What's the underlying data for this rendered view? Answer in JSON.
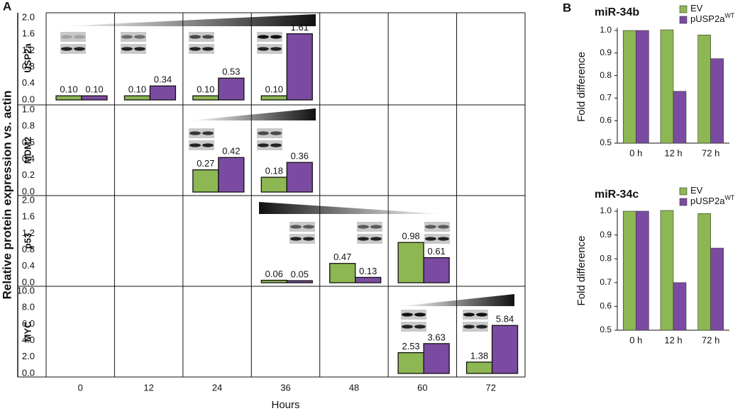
{
  "chart_data": [
    {
      "type": "bar",
      "panel": "A",
      "ylabel": "Relative protein expression vs. actin",
      "xlabel": "Hours",
      "categories": [
        0,
        12,
        24,
        36,
        48,
        60,
        72
      ],
      "rows": [
        {
          "label": "USP2a",
          "ylim": [
            0,
            2
          ],
          "yticks": [
            {
              "value": 0,
              "label": "0.0"
            },
            {
              "value": 0.4,
              "label": "0.4"
            },
            {
              "value": 0.8,
              "label": "0.8"
            },
            {
              "value": 1.2,
              "label": "1.2"
            },
            {
              "value": 1.6,
              "label": "1.6"
            },
            {
              "value": 2,
              "label": "2.0"
            }
          ],
          "series": [
            {
              "color": "#8db752",
              "values": [
                0.1,
                0.1,
                0.1,
                0.1,
                null,
                null,
                null
              ],
              "value_labels": [
                "0.10",
                "0.10",
                "0.10",
                "0.10",
                null,
                null,
                null
              ]
            },
            {
              "color": "#7b4ba1",
              "values": [
                0.1,
                0.34,
                0.53,
                1.61,
                null,
                null,
                null
              ],
              "value_labels": [
                "0.10",
                "0.34",
                "0.53",
                "1.61",
                null,
                null,
                null
              ]
            }
          ]
        },
        {
          "label": "MDM2",
          "ylim": [
            0,
            1
          ],
          "yticks": [
            {
              "value": 0,
              "label": "0.0"
            },
            0.2,
            0.4,
            0.6,
            0.8,
            {
              "value": 1,
              "label": "1.0"
            }
          ],
          "series": [
            {
              "color": "#8db752",
              "values": [
                null,
                null,
                0.27,
                0.18,
                null,
                null,
                null
              ],
              "value_labels": [
                null,
                null,
                "0.27",
                "0.18",
                null,
                null,
                null
              ]
            },
            {
              "color": "#7b4ba1",
              "values": [
                null,
                null,
                0.42,
                0.36,
                null,
                null,
                null
              ],
              "value_labels": [
                null,
                null,
                "0.42",
                "0.36",
                null,
                null,
                null
              ]
            }
          ]
        },
        {
          "label": "p53",
          "ylim": [
            0,
            2
          ],
          "yticks": [
            {
              "value": 0,
              "label": "0.0"
            },
            0.4,
            0.8,
            1.2,
            1.6,
            {
              "value": 2,
              "label": "2.0"
            }
          ],
          "series": [
            {
              "color": "#8db752",
              "values": [
                null,
                null,
                null,
                0.06,
                0.47,
                0.98,
                null
              ],
              "value_labels": [
                null,
                null,
                null,
                "0.06",
                "0.47",
                "0.98",
                null
              ]
            },
            {
              "color": "#7b4ba1",
              "values": [
                null,
                null,
                null,
                0.05,
                0.13,
                0.61,
                null
              ],
              "value_labels": [
                null,
                null,
                null,
                "0.05",
                "0.13",
                "0.61",
                null
              ]
            }
          ]
        },
        {
          "label": "MYC",
          "ylim": [
            0,
            10
          ],
          "yticks": [
            {
              "value": 0,
              "label": "0.0"
            },
            {
              "value": 2,
              "label": "2.0"
            },
            {
              "value": 4,
              "label": "4.0"
            },
            {
              "value": 6,
              "label": "6.0"
            },
            {
              "value": 8,
              "label": "8.0"
            },
            {
              "value": 10,
              "label": "10.0"
            }
          ],
          "series": [
            {
              "color": "#8db752",
              "values": [
                null,
                null,
                null,
                null,
                null,
                2.53,
                1.38
              ],
              "value_labels": [
                null,
                null,
                null,
                null,
                null,
                "2.53",
                "1.38"
              ]
            },
            {
              "color": "#7b4ba1",
              "values": [
                null,
                null,
                null,
                null,
                null,
                3.63,
                5.84
              ],
              "value_labels": [
                null,
                null,
                null,
                null,
                null,
                "3.63",
                "5.84"
              ]
            }
          ]
        }
      ]
    },
    {
      "type": "bar",
      "panel": "B",
      "title": "miR-34b",
      "ylabel": "Fold difference",
      "categories": [
        "0 h",
        "12 h",
        "72 h"
      ],
      "ylim": [
        0.5,
        1
      ],
      "yticks": [
        0.5,
        0.6,
        0.7,
        0.8,
        0.9,
        {
          "value": 1,
          "label": "1.0"
        }
      ],
      "legend": "upper right",
      "series": [
        {
          "name": "EV",
          "color": "#8db752",
          "values": [
            1.0,
            1.003,
            0.98
          ]
        },
        {
          "name": "pUSP2a",
          "superscript": "WT",
          "color": "#7b4ba1",
          "values": [
            1.0,
            0.73,
            0.875
          ]
        }
      ]
    },
    {
      "type": "bar",
      "title": "miR-34c",
      "ylabel": "Fold difference",
      "categories": [
        "0 h",
        "12 h",
        "72 h"
      ],
      "ylim": [
        0.5,
        1
      ],
      "yticks": [
        0.5,
        0.6,
        0.7,
        0.8,
        0.9,
        {
          "value": 1,
          "label": "1.0"
        }
      ],
      "legend": "upper right",
      "series": [
        {
          "name": "EV",
          "color": "#8db752",
          "values": [
            1.0,
            1.003,
            0.99
          ]
        },
        {
          "name": "pUSP2a",
          "superscript": "WT",
          "color": "#7b4ba1",
          "values": [
            1.0,
            0.7,
            0.845
          ]
        }
      ]
    }
  ]
}
